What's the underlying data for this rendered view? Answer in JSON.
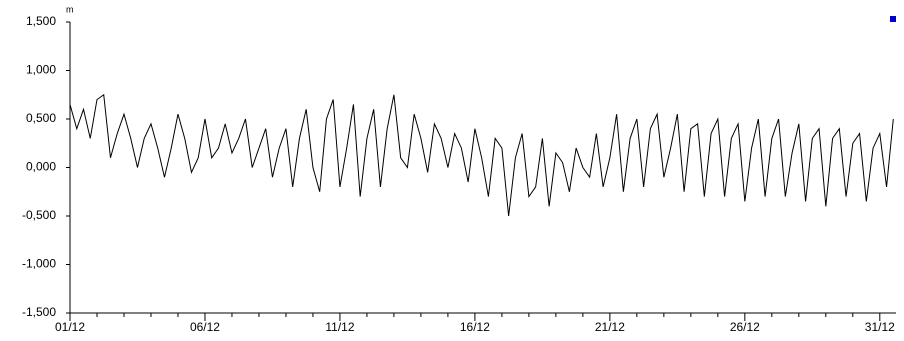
{
  "chart_data": {
    "type": "line",
    "y_label": "m",
    "x": [
      1,
      1.25,
      1.5,
      1.75,
      2,
      2.25,
      2.5,
      2.75,
      3,
      3.25,
      3.5,
      3.75,
      4,
      4.25,
      4.5,
      4.75,
      5,
      5.25,
      5.5,
      5.75,
      6,
      6.25,
      6.5,
      6.75,
      7,
      7.25,
      7.5,
      7.75,
      8,
      8.25,
      8.5,
      8.75,
      9,
      9.25,
      9.5,
      9.75,
      10,
      10.25,
      10.5,
      10.75,
      11,
      11.25,
      11.5,
      11.75,
      12,
      12.25,
      12.5,
      12.75,
      13,
      13.25,
      13.5,
      13.75,
      14,
      14.25,
      14.5,
      14.75,
      15,
      15.25,
      15.5,
      15.75,
      16,
      16.25,
      16.5,
      16.75,
      17,
      17.25,
      17.5,
      17.75,
      18,
      18.25,
      18.5,
      18.75,
      19,
      19.25,
      19.5,
      19.75,
      20,
      20.25,
      20.5,
      20.75,
      21,
      21.25,
      21.5,
      21.75,
      22,
      22.25,
      22.5,
      22.75,
      23,
      23.25,
      23.5,
      23.75,
      24,
      24.25,
      24.5,
      24.75,
      25,
      25.25,
      25.5,
      25.75,
      26,
      26.25,
      26.5,
      26.75,
      27,
      27.25,
      27.5,
      27.75,
      28,
      28.25,
      28.5,
      28.75,
      29,
      29.25,
      29.5,
      29.75,
      30,
      30.25,
      30.5,
      30.75,
      31,
      31.25,
      31.5
    ],
    "series": [
      {
        "color": "#000000",
        "values": [
          0.65,
          0.4,
          0.6,
          0.3,
          0.7,
          0.75,
          0.1,
          0.35,
          0.55,
          0.3,
          0.0,
          0.3,
          0.45,
          0.2,
          -0.1,
          0.2,
          0.55,
          0.3,
          -0.05,
          0.1,
          0.5,
          0.1,
          0.2,
          0.45,
          0.15,
          0.3,
          0.5,
          0.0,
          0.2,
          0.4,
          -0.1,
          0.2,
          0.4,
          -0.2,
          0.3,
          0.6,
          0.0,
          -0.25,
          0.5,
          0.7,
          -0.2,
          0.2,
          0.65,
          -0.3,
          0.3,
          0.6,
          -0.2,
          0.4,
          0.75,
          0.1,
          0.0,
          0.55,
          0.3,
          -0.05,
          0.45,
          0.3,
          0.0,
          0.35,
          0.2,
          -0.15,
          0.4,
          0.1,
          -0.3,
          0.3,
          0.2,
          -0.5,
          0.1,
          0.35,
          -0.3,
          -0.2,
          0.3,
          -0.4,
          0.15,
          0.05,
          -0.25,
          0.2,
          0.0,
          -0.1,
          0.35,
          -0.2,
          0.1,
          0.55,
          -0.25,
          0.3,
          0.5,
          -0.2,
          0.4,
          0.55,
          -0.1,
          0.2,
          0.55,
          -0.25,
          0.4,
          0.45,
          -0.3,
          0.35,
          0.5,
          -0.3,
          0.3,
          0.45,
          -0.35,
          0.2,
          0.5,
          -0.3,
          0.3,
          0.5,
          -0.3,
          0.15,
          0.45,
          -0.35,
          0.3,
          0.4,
          -0.4,
          0.3,
          0.4,
          -0.3,
          0.25,
          0.35,
          -0.35,
          0.2,
          0.35,
          -0.2,
          0.5
        ]
      }
    ],
    "xlim": [
      1,
      31.6
    ],
    "xticks": [
      {
        "value": 1,
        "label": "01/12"
      },
      {
        "value": 6,
        "label": "06/12"
      },
      {
        "value": 11,
        "label": "11/12"
      },
      {
        "value": 16,
        "label": "16/12"
      },
      {
        "value": 21,
        "label": "21/12"
      },
      {
        "value": 26,
        "label": "26/12"
      },
      {
        "value": 31,
        "label": "31/12"
      }
    ],
    "xminorticks": [
      2,
      3,
      4,
      5,
      7,
      8,
      9,
      10,
      12,
      13,
      14,
      15,
      17,
      18,
      19,
      20,
      22,
      23,
      24,
      25,
      27,
      28,
      29,
      30
    ],
    "ylim": [
      -1.5,
      1.5
    ],
    "yticks": [
      {
        "value": -1.5,
        "label": "-1,500"
      },
      {
        "value": -1,
        "label": "-1,000"
      },
      {
        "value": -0.5,
        "label": "-0,500"
      },
      {
        "value": 0,
        "label": "0,000"
      },
      {
        "value": 0.5,
        "label": "0,500"
      },
      {
        "value": 1,
        "label": "1,000"
      },
      {
        "value": 1.5,
        "label": "1,500"
      }
    ]
  }
}
